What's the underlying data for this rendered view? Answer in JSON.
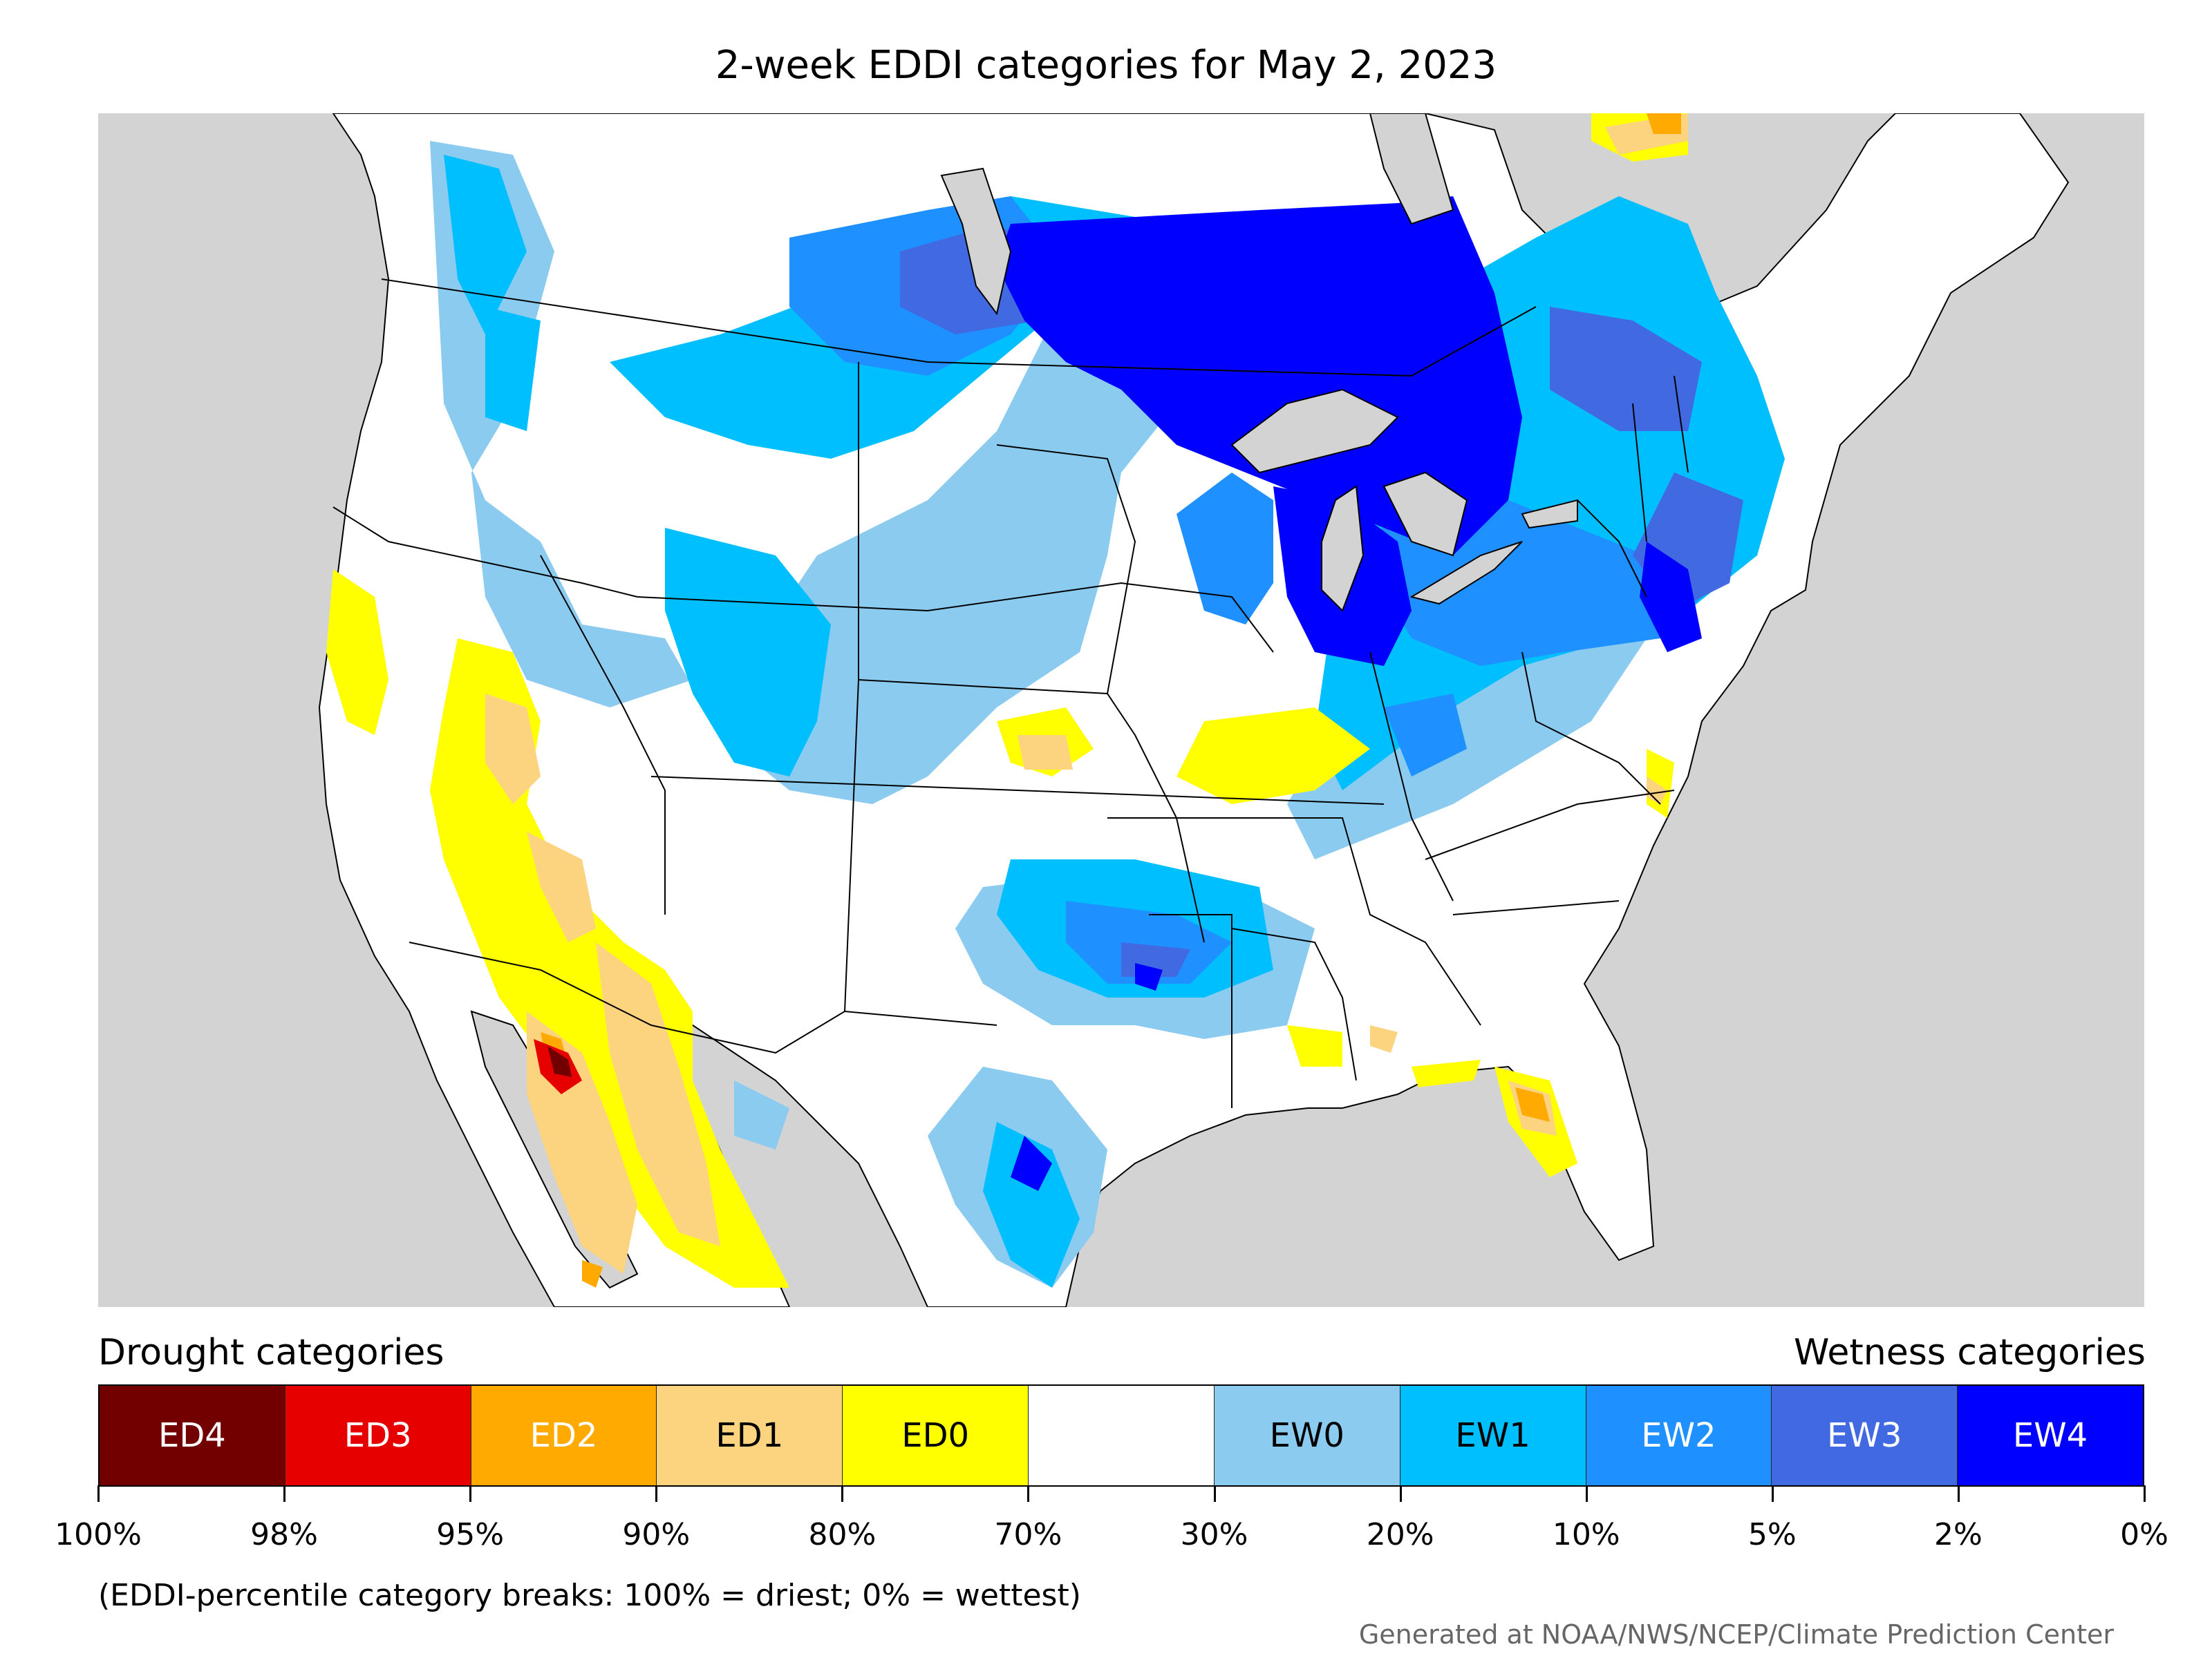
{
  "title": "2-week EDDI categories for May 2, 2023",
  "legend": {
    "drought_heading": "Drought categories",
    "wetness_heading": "Wetness categories",
    "categories": [
      {
        "label": "ED4",
        "color": "#730000",
        "text_color": "#ffffff"
      },
      {
        "label": "ED3",
        "color": "#e60000",
        "text_color": "#ffffff"
      },
      {
        "label": "ED2",
        "color": "#ffaa00",
        "text_color": "#ffffff"
      },
      {
        "label": "ED1",
        "color": "#fcd37f",
        "text_color": "#000000"
      },
      {
        "label": "ED0",
        "color": "#ffff00",
        "text_color": "#000000"
      },
      {
        "label": "",
        "color": "#ffffff",
        "text_color": "#000000"
      },
      {
        "label": "EW0",
        "color": "#8ccbf0",
        "text_color": "#000000"
      },
      {
        "label": "EW1",
        "color": "#00bfff",
        "text_color": "#000000"
      },
      {
        "label": "EW2",
        "color": "#1e90ff",
        "text_color": "#ffffff"
      },
      {
        "label": "EW3",
        "color": "#4169e1",
        "text_color": "#ffffff"
      },
      {
        "label": "EW4",
        "color": "#0000ff",
        "text_color": "#ffffff"
      }
    ],
    "ticks": [
      "100%",
      "98%",
      "95%",
      "90%",
      "80%",
      "70%",
      "30%",
      "20%",
      "10%",
      "5%",
      "2%",
      "0%"
    ]
  },
  "footnote": "(EDDI-percentile category breaks: 100% = driest; 0% = wettest)",
  "credit": "Generated at NOAA/NWS/NCEP/Climate Prediction Center",
  "colors": {
    "ocean": "#d3d3d3",
    "border": "#000000"
  }
}
